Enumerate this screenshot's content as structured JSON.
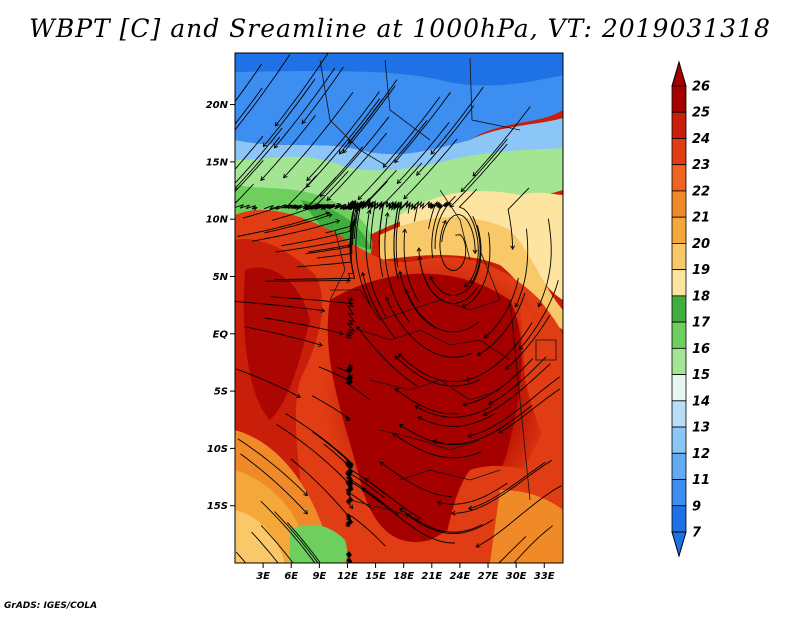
{
  "title": "WBPT [C] and Sreamline at 1000hPa, VT: 2019031318",
  "credit": "GrADS: IGES/COLA",
  "map": {
    "lat_range": [
      -20,
      24.5
    ],
    "lon_range": [
      0,
      35
    ],
    "lat_ticks": [
      "20N",
      "15N",
      "10N",
      "5N",
      "EQ",
      "5S",
      "10S",
      "15S"
    ],
    "lat_values": [
      20,
      15,
      10,
      5,
      0,
      -5,
      -10,
      -15
    ],
    "lon_ticks": [
      "3E",
      "6E",
      "9E",
      "12E",
      "15E",
      "18E",
      "21E",
      "24E",
      "27E",
      "30E",
      "33E"
    ],
    "lon_values": [
      3,
      6,
      9,
      12,
      15,
      18,
      21,
      24,
      27,
      30,
      33
    ]
  },
  "colorbar": {
    "labels": [
      "26",
      "25",
      "24",
      "23",
      "22",
      "21",
      "20",
      "19",
      "18",
      "17",
      "16",
      "15",
      "14",
      "13",
      "12",
      "11",
      "9",
      "7"
    ],
    "colors": [
      "#a50000",
      "#c81e0a",
      "#e03d14",
      "#ee6420",
      "#f08a28",
      "#f4a83a",
      "#f9c868",
      "#fde4a0",
      "#3fae3f",
      "#6ecf5e",
      "#a4e594",
      "#e6f6f2",
      "#b8def6",
      "#8cc6f6",
      "#62aaf2",
      "#3c8ef0",
      "#1f72e6"
    ],
    "min_color": "#1f72e6",
    "max_color": "#a50000"
  }
}
